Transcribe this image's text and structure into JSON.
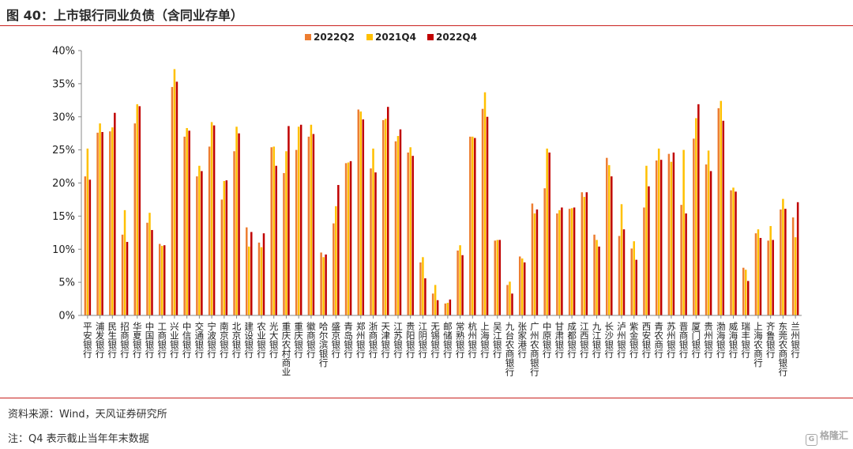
{
  "header": {
    "title": "图 40：上市银行同业负债（含同业存单）"
  },
  "footer": {
    "source": "资料来源：Wind，天风证券研究所",
    "note": "注：Q4 表示截止当年年末数据",
    "watermark": "格隆汇",
    "watermark_icon": "G"
  },
  "colors": {
    "accent": "#c9211e",
    "series": [
      "#ed7d31",
      "#ffc000",
      "#c00000"
    ]
  },
  "chart_data": {
    "type": "bar",
    "title": "",
    "xlabel": "",
    "ylabel": "",
    "ylim": [
      0,
      40
    ],
    "yticks": [
      "0%",
      "5%",
      "10%",
      "15%",
      "20%",
      "25%",
      "30%",
      "35%",
      "40%"
    ],
    "grid": false,
    "legend_position": "top",
    "categories": [
      "平安银行",
      "浦发银行",
      "民生银行",
      "招商银行",
      "华夏银行",
      "中国银行",
      "工商银行",
      "兴业银行",
      "中信银行",
      "交通银行",
      "宁波银行",
      "南京银行",
      "北京银行",
      "建设银行",
      "农业银行",
      "光大银行",
      "重庆农村商业",
      "重庆银行",
      "徽商银行",
      "哈尔滨银行",
      "盛京银行",
      "青岛银行",
      "郑州银行",
      "浙商银行",
      "天津银行",
      "江苏银行",
      "贵阳银行",
      "江阴银行",
      "无锡银行",
      "邮储银行",
      "常熟银行",
      "杭州银行",
      "上海银行",
      "吴江银行",
      "九台农商银行",
      "张家港行",
      "广州农商银行",
      "中原银行",
      "甘肃银行",
      "成都银行",
      "江西银行",
      "九江银行",
      "长沙银行",
      "泸州银行",
      "紫金银行",
      "西安银行",
      "青农商行",
      "苏州银行",
      "晋商银行",
      "厦门银行",
      "贵州银行",
      "渤海银行",
      "威海银行",
      "瑞丰银行",
      "上海农商行",
      "齐鲁银行",
      "东莞农商银行",
      "兰州银行"
    ],
    "series": [
      {
        "name": "2022Q2",
        "values": [
          21.0,
          27.6,
          27.8,
          12.2,
          29.0,
          14.0,
          10.8,
          34.5,
          27.0,
          21.0,
          25.5,
          17.5,
          24.8,
          13.3,
          11.0,
          25.4,
          21.5,
          25.0,
          27.0,
          9.5,
          13.9,
          23.0,
          31.1,
          22.2,
          29.5,
          26.3,
          24.6,
          8.0,
          3.3,
          1.8,
          9.8,
          27.0,
          31.2,
          11.3,
          4.6,
          8.9,
          16.9,
          19.2,
          15.4,
          16.1,
          18.6,
          12.2,
          23.8,
          12.0,
          10.1,
          16.3,
          23.4,
          24.4,
          16.7,
          26.7,
          22.8,
          31.3,
          18.9,
          7.2,
          12.4,
          11.3,
          16.0,
          14.8
        ]
      },
      {
        "name": "2021Q4",
        "values": [
          25.2,
          29.0,
          28.4,
          15.9,
          31.9,
          15.5,
          10.5,
          37.2,
          28.3,
          22.6,
          29.2,
          20.3,
          28.5,
          10.4,
          10.3,
          25.5,
          24.8,
          28.5,
          28.8,
          8.8,
          16.5,
          23.1,
          30.8,
          25.2,
          29.7,
          27.1,
          25.4,
          8.8,
          4.6,
          1.9,
          10.6,
          27.0,
          33.7,
          11.4,
          5.1,
          8.6,
          15.4,
          25.2,
          15.9,
          16.2,
          17.9,
          11.4,
          22.7,
          16.8,
          11.2,
          22.6,
          25.2,
          23.2,
          25.0,
          29.8,
          24.9,
          32.4,
          19.3,
          6.9,
          13.0,
          13.5,
          17.6,
          11.8
        ]
      },
      {
        "name": "2022Q4",
        "values": [
          20.5,
          27.7,
          30.6,
          11.1,
          31.6,
          12.9,
          10.6,
          35.3,
          27.9,
          21.8,
          28.7,
          20.4,
          27.5,
          12.6,
          12.4,
          22.6,
          28.6,
          28.8,
          27.4,
          9.2,
          19.7,
          23.3,
          29.6,
          21.6,
          31.5,
          28.1,
          24.1,
          5.6,
          2.3,
          2.4,
          9.1,
          26.8,
          30.0,
          11.4,
          3.3,
          8.0,
          16.0,
          24.6,
          16.3,
          16.3,
          18.6,
          10.4,
          21.0,
          13.0,
          8.4,
          19.5,
          23.5,
          24.6,
          15.4,
          31.9,
          21.8,
          29.4,
          18.7,
          5.2,
          11.7,
          11.4,
          16.1,
          17.1
        ]
      }
    ]
  }
}
